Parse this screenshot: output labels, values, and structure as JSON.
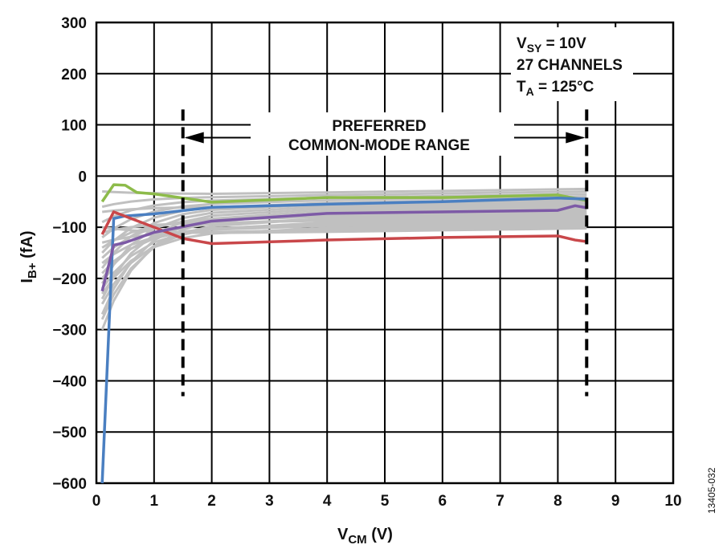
{
  "chart_data": {
    "type": "line",
    "xlabel": "V",
    "xlabel_sub": "CM",
    "xlabel_unit": " (V)",
    "ylabel": "I",
    "ylabel_sub": "B+",
    "ylabel_unit": " (fA)",
    "xlim": [
      0,
      10
    ],
    "ylim": [
      -600,
      300
    ],
    "xticks": [
      "0",
      "1",
      "2",
      "3",
      "4",
      "5",
      "6",
      "7",
      "8",
      "9",
      "10"
    ],
    "yticks": [
      "300",
      "200",
      "100",
      "0",
      "−100",
      "−200",
      "−300",
      "−400",
      "−500",
      "−600"
    ],
    "xtick_values": [
      0,
      1,
      2,
      3,
      4,
      5,
      6,
      7,
      8,
      9,
      10
    ],
    "ytick_values": [
      300,
      200,
      100,
      0,
      -100,
      -200,
      -300,
      -400,
      -500,
      -600
    ],
    "grid": true,
    "annotations": {
      "conditions": [
        {
          "main": "V",
          "sub": "SY",
          "rest": " = 10V"
        },
        {
          "main": "27 CHANNELS",
          "sub": "",
          "rest": ""
        },
        {
          "main": "T",
          "sub": "A",
          "rest": " = 125°C"
        }
      ],
      "range_label_1": "PREFERRED",
      "range_label_2": "COMMON-MODE RANGE",
      "range_x": [
        1.5,
        8.5
      ]
    },
    "figure_id": "13405-032",
    "series": [
      {
        "name": "green",
        "color": "#8dbb4a",
        "x": [
          0.1,
          0.3,
          0.5,
          0.7,
          1,
          2,
          4,
          6,
          8,
          8.5
        ],
        "y": [
          -50,
          -17,
          -18,
          -32,
          -35,
          -51,
          -42,
          -42,
          -37,
          -48
        ]
      },
      {
        "name": "blue",
        "color": "#4a7fc1",
        "x": [
          0.1,
          0.3,
          0.5,
          1,
          2,
          4,
          6,
          8,
          8.5
        ],
        "y": [
          -600,
          -83,
          -78,
          -74,
          -61,
          -55,
          -50,
          -43,
          -45
        ]
      },
      {
        "name": "red",
        "color": "#c9474a",
        "x": [
          0.1,
          0.3,
          1,
          1.5,
          2,
          4,
          6,
          8,
          8.3,
          8.5
        ],
        "y": [
          -114,
          -70,
          -100,
          -122,
          -132,
          -125,
          -120,
          -117,
          -125,
          -128
        ]
      },
      {
        "name": "purple",
        "color": "#7d5aa6",
        "x": [
          0.1,
          0.3,
          0.5,
          1,
          2,
          4,
          6,
          8,
          8.3,
          8.5
        ],
        "y": [
          -225,
          -135,
          -130,
          -110,
          -88,
          -73,
          -70,
          -67,
          -58,
          -62
        ]
      }
    ],
    "gray_color": "#c0c0c0",
    "gray_series_plateau": [
      -35,
      -40,
      -45,
      -50,
      -55,
      -58,
      -62,
      -66,
      -70,
      -74,
      -78,
      -82,
      -86,
      -90,
      -93,
      -96,
      -100,
      -104,
      -108,
      -112,
      -85,
      -60,
      -95
    ],
    "gray_series_start": [
      -30,
      -60,
      -90,
      -120,
      -150,
      -180,
      -210,
      -240,
      -270,
      -300,
      -160,
      -140,
      -200,
      -110,
      -250,
      -190,
      -170,
      -230,
      -130,
      -100,
      -280,
      -70,
      -220
    ]
  }
}
